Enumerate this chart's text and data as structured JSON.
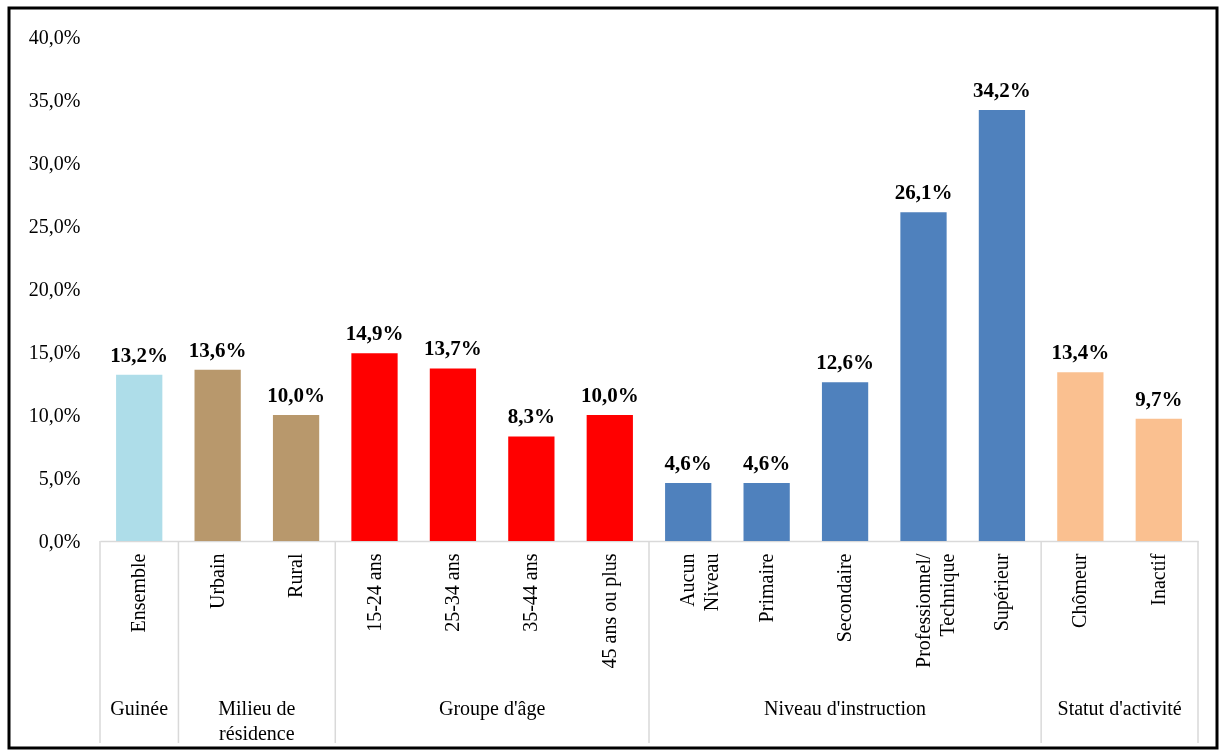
{
  "chart_data": {
    "type": "bar",
    "categories": [
      "Ensemble",
      "Urbain",
      "Rural",
      "15-24 ans",
      "25-34 ans",
      "35-44 ans",
      "45 ans ou plus",
      "Aucun\nNiveau",
      "Primaire",
      "Secondaire",
      "Professionnel/\nTechnique",
      "Supérieur",
      "Chômeur",
      "Inactif"
    ],
    "values": [
      13.2,
      13.6,
      10.0,
      14.9,
      13.7,
      8.3,
      10.0,
      4.6,
      4.6,
      12.6,
      26.1,
      34.2,
      13.4,
      9.7
    ],
    "value_labels": [
      "13,2%",
      "13,6%",
      "10,0%",
      "14,9%",
      "13,7%",
      "8,3%",
      "10,0%",
      "4,6%",
      "4,6%",
      "12,6%",
      "26,1%",
      "34,2%",
      "13,4%",
      "9,7%"
    ],
    "colors": [
      "#aedde9",
      "#b8986c",
      "#b8986c",
      "#ff0000",
      "#ff0000",
      "#ff0000",
      "#ff0000",
      "#4f81bd",
      "#4f81bd",
      "#4f81bd",
      "#4f81bd",
      "#4f81bd",
      "#fac090",
      "#fac090"
    ],
    "annotations": [
      "Guinée",
      "Milieu de\nrésidence",
      "Groupe d'âge",
      "Niveau d'instruction",
      "Statut d'activité"
    ],
    "ylim": [
      0,
      40
    ],
    "yticks": [
      {
        "value": 0,
        "label": "0,0%"
      },
      {
        "value": 5,
        "label": "5,0%"
      },
      {
        "value": 10,
        "label": "10,0%"
      },
      {
        "value": 15,
        "label": "15,0%"
      },
      {
        "value": 20,
        "label": "20,0%"
      },
      {
        "value": 25,
        "label": "25,0%"
      },
      {
        "value": 30,
        "label": "30,0%"
      },
      {
        "value": 35,
        "label": "35,0%"
      },
      {
        "value": 40,
        "label": "40,0%"
      }
    ]
  }
}
